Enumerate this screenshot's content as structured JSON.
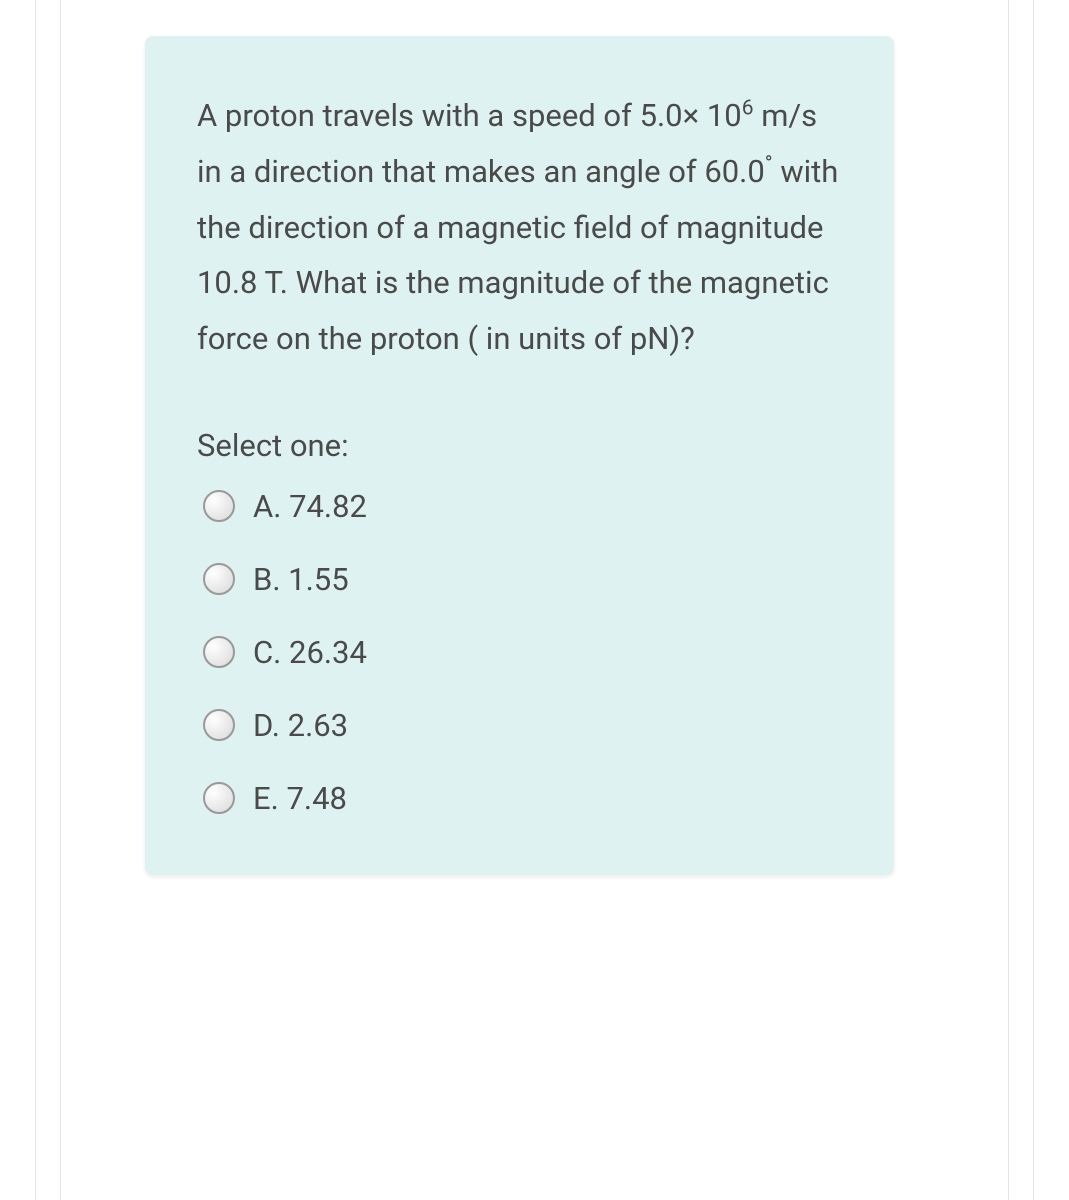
{
  "question": {
    "text_parts": {
      "p1": "A proton travels with a speed of 5.0",
      "times": "×",
      "p2": " 10",
      "sup1": "6",
      "p3": " m/s in a direction that makes an angle of 60.0",
      "deg": "°",
      "p4": " with the direction of a magnetic field of magnitude 10.8 T. What is the magnitude of the magnetic force on the proton ( in units of pN)?"
    },
    "select_prompt": "Select one:",
    "options": [
      {
        "label": "A. 74.82"
      },
      {
        "label": "B. 1.55"
      },
      {
        "label": "C. 26.34"
      },
      {
        "label": "D. 2.63"
      },
      {
        "label": "E. 7.48"
      }
    ]
  },
  "colors": {
    "card_bg": "#def2f1",
    "text": "#4a4a4a",
    "border": "#e5e5e5"
  }
}
